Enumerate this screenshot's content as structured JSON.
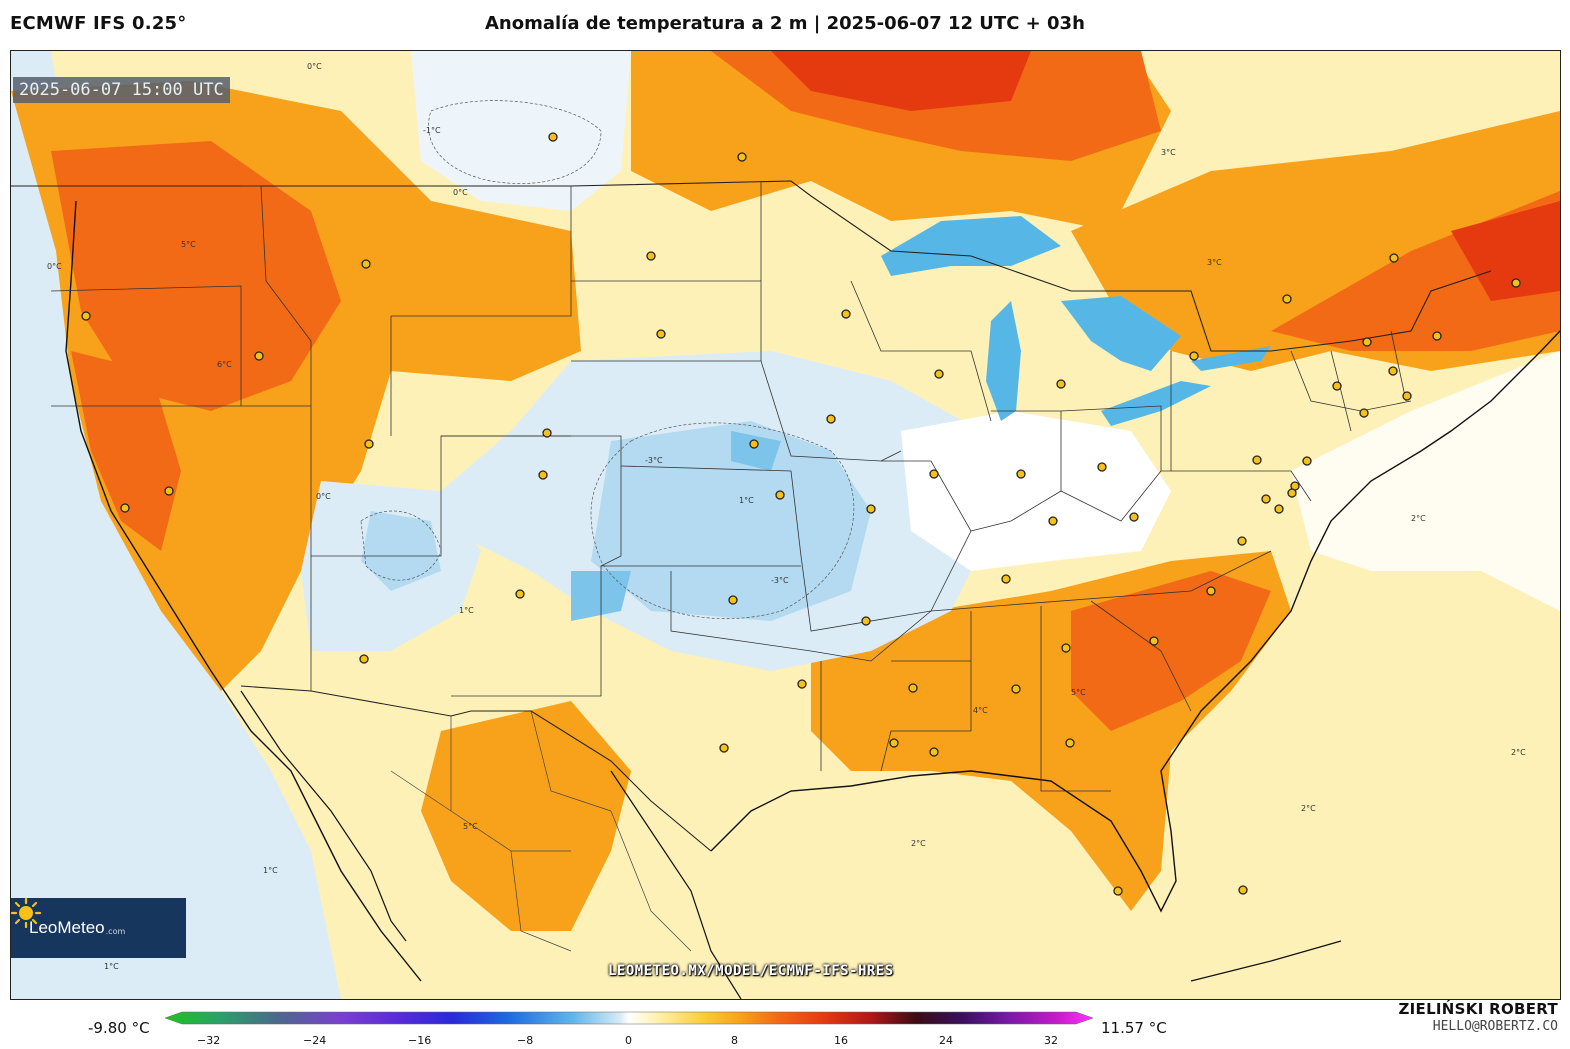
{
  "header": {
    "model": "ECMWF IFS 0.25°",
    "title": "Anomalía de temperatura a 2 m | 2025-06-07 12 UTC + 03h"
  },
  "map": {
    "valid_time": "2025-06-07 15:00 UTC",
    "url": "LEOMETEO.MX/MODEL/ECMWF-IFS-HRES",
    "contour_labels": [
      "0°C",
      "-1°C",
      "-2°C",
      "-3°C",
      "1°C",
      "2°C",
      "3°C",
      "4°C",
      "5°C",
      "6°C",
      "7°C"
    ],
    "colors": {
      "deep_red": "#e53a10",
      "red_orange": "#f26a16",
      "orange": "#f7a21a",
      "yellow": "#fbd85a",
      "light_yellow": "#fdf1b8",
      "white": "#ffffff",
      "light_blue": "#dcecf6",
      "blue": "#b3daf0",
      "mid_blue": "#7cc4ea",
      "lake_blue": "#56b7e6"
    }
  },
  "logo": {
    "name": "LeoMeteo",
    "domain": ".com"
  },
  "legend": {
    "min": "-9.80 °C",
    "max": "11.57 °C",
    "ticks": [
      "−32",
      "−24",
      "−16",
      "−8",
      "0",
      "8",
      "16",
      "24",
      "32"
    ]
  },
  "credit": {
    "name": "ZIELIŃSKI ROBERT",
    "email": "HELLO@ROBERTZ.CO"
  }
}
